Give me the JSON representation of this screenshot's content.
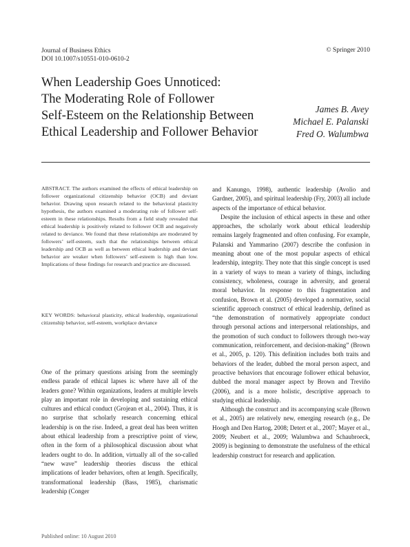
{
  "header": {
    "journal_name": "Journal of Business Ethics",
    "doi": "DOI 10.1007/s10551-010-0610-2",
    "copyright": "© Springer 2010"
  },
  "title_lines": [
    "When Leadership Goes Unnoticed:",
    "The Moderating Role of Follower",
    "Self-Esteem on the Relationship Between",
    "Ethical Leadership and Follower Behavior"
  ],
  "authors": [
    "James B. Avey",
    "Michael E. Palanski",
    "Fred O. Walumbwa"
  ],
  "abstract": "ABSTRACT. The authors examined the effects of ethical leadership on follower organizational citizenship behavior (OCB) and deviant behavior. Drawing upon research related to the behavioral plasticity hypothesis, the authors examined a moderating role of follower self-esteem in these relationships. Results from a field study revealed that ethical leadership is positively related to follower OCB and negatively related to deviance. We found that these relationships are moderated by followers’ self-esteem, such that the relationships between ethical leadership and OCB as well as between ethical leadership and deviant behavior are weaker when followers’ self-esteem is high than low. Implications of these findings for research and practice are discussed.",
  "keywords": "KEY WORDS: behavioral plasticity, ethical leadership, organizational citizenship behavior, self-esteem, workplace deviance",
  "body_left": "One of the primary questions arising from the seemingly endless parade of ethical lapses is: where have all of the leaders gone? Within organizations, leaders at multiple levels play an important role in developing and sustaining ethical cultures and ethical conduct (Grojean et al., 2004). Thus, it is no surprise that scholarly research concerning ethical leadership is on the rise. Indeed, a great deal has been written about ethical leadership from a prescriptive point of view, often in the form of a philosophical discussion about what leaders ought to do. In addition, virtually all of the so-called “new wave” leadership theories discuss the ethical implications of leader behaviors, often at length. Specifically, transformational leadership (Bass, 1985), charismatic leadership (Conger",
  "body_right": [
    "and Kanungo, 1998), authentic leadership (Avolio and Gardner, 2005), and spiritual leadership (Fry, 2003) all include aspects of the importance of ethical behavior.",
    "Despite the inclusion of ethical aspects in these and other approaches, the scholarly work about ethical leadership remains largely fragmented and often confusing. For example, Palanski and Yammarino (2007) describe the confusion in meaning about one of the most popular aspects of ethical leadership, integrity. They note that this single concept is used in a variety of ways to mean a variety of things, including consistency, wholeness, courage in adversity, and general moral behavior. In response to this fragmentation and confusion, Brown et al. (2005) developed a normative, social scientific approach construct of ethical leadership, defined as “the demonstration of normatively appropriate conduct through personal actions and interpersonal relationships, and the promotion of such conduct to followers through two-way communication, reinforcement, and decision-making” (Brown et al., 2005, p. 120). This definition includes both traits and behaviors of the leader, dubbed the moral person aspect, and proactive behaviors that encourage follower ethical behavior, dubbed the moral manager aspect by Brown and Treviño (2006), and is a more holistic, descriptive approach to studying ethical leadership.",
    "Although the construct and its accompanying scale (Brown et al., 2005) are relatively new, emerging research (e.g., De Hoogh and Den Hartog, 2008; Detert et al., 2007; Mayer et al., 2009; Neubert et al., 2009; Walumbwa and Schaubroeck, 2009) is beginning to demonstrate the usefulness of the ethical leadership construct for research and application."
  ],
  "footer": "Published online: 10 August 2010"
}
